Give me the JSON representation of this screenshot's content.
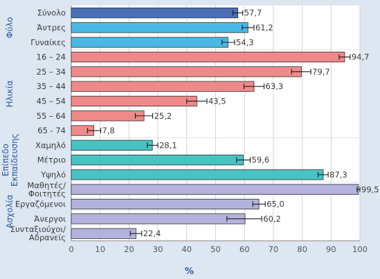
{
  "chart_data": {
    "type": "bar",
    "orientation": "horizontal",
    "xlabel": "%",
    "xlim": [
      0,
      100
    ],
    "xticks": [
      0,
      10,
      20,
      30,
      40,
      50,
      60,
      70,
      80,
      90,
      100
    ],
    "grid": true,
    "groups": [
      {
        "name": "Φύλο",
        "color": "#4ab8e6",
        "categories": [
          "Σύνολο",
          "Άντρες",
          "Γυναίκες"
        ]
      },
      {
        "name": "Ηλικία",
        "color": "#f08a8a",
        "categories": [
          "16 – 24",
          "25 – 34",
          "35 – 44",
          "45 – 54",
          "55 – 64",
          "65 - 74"
        ]
      },
      {
        "name": "Επίπεδο Εκπαίδευσης",
        "color": "#48c3c3",
        "categories": [
          "Χαμηλό",
          "Μέτριο",
          "Υψηλό"
        ]
      },
      {
        "name": "Ασχολία",
        "color": "#b4b3de",
        "categories": [
          "Μαθητές/ Φοιτητές",
          "Εργαζόμενοι",
          "Άνεργοι",
          "Συνταξιούχοι/ Αδρανείς"
        ]
      }
    ],
    "bars": [
      {
        "category": "Σύνολο",
        "value": 57.7,
        "label": "57,7",
        "err_low": 56.0,
        "err_high": 59.4,
        "color": "#4a6fb5"
      },
      {
        "category": "Άντρες",
        "value": 61.2,
        "label": "61,2",
        "err_low": 59.2,
        "err_high": 63.3,
        "color": "#4ab8e6"
      },
      {
        "category": "Γυναίκες",
        "value": 54.3,
        "label": "54,3",
        "err_low": 52.2,
        "err_high": 56.6,
        "color": "#4ab8e6"
      },
      {
        "category": "16 – 24",
        "value": 94.7,
        "label": "94,7",
        "err_low": 92.8,
        "err_high": 96.6,
        "color": "#f08a8a"
      },
      {
        "category": "25 – 34",
        "value": 79.7,
        "label": "79,7",
        "err_low": 76.3,
        "err_high": 83.0,
        "color": "#f08a8a"
      },
      {
        "category": "35 – 44",
        "value": 63.3,
        "label": "63,3",
        "err_low": 59.8,
        "err_high": 66.8,
        "color": "#f08a8a"
      },
      {
        "category": "45 – 54",
        "value": 43.5,
        "label": "43,5",
        "err_low": 40.0,
        "err_high": 47.0,
        "color": "#f08a8a"
      },
      {
        "category": "55 – 64",
        "value": 25.2,
        "label": "25,2",
        "err_low": 22.2,
        "err_high": 28.2,
        "color": "#f08a8a"
      },
      {
        "category": "65 - 74",
        "value": 7.8,
        "label": "7,8",
        "err_low": 5.6,
        "err_high": 10.2,
        "color": "#f08a8a"
      },
      {
        "category": "Χαμηλό",
        "value": 28.1,
        "label": "28,1",
        "err_low": 26.3,
        "err_high": 30.0,
        "color": "#48c3c3"
      },
      {
        "category": "Μέτριο",
        "value": 59.6,
        "label": "59,6",
        "err_low": 57.3,
        "err_high": 62.0,
        "color": "#48c3c3"
      },
      {
        "category": "Υψηλό",
        "value": 87.3,
        "label": "87,3",
        "err_low": 85.5,
        "err_high": 89.0,
        "color": "#48c3c3"
      },
      {
        "category": "Μαθητές/ Φοιτητές",
        "value": 99.5,
        "label": "99,5",
        "err_low": 99.0,
        "err_high": 100.0,
        "color": "#b4b3de"
      },
      {
        "category": "Εργαζόμενοι",
        "value": 65.0,
        "label": "65,0",
        "err_low": 62.9,
        "err_high": 67.2,
        "color": "#b4b3de"
      },
      {
        "category": "Άνεργοι",
        "value": 60.2,
        "label": "60,2",
        "err_low": 53.9,
        "err_high": 66.0,
        "color": "#b4b3de"
      },
      {
        "category": "Συνταξιούχοι/ Αδρανείς",
        "value": 22.4,
        "label": "22,4",
        "err_low": 20.4,
        "err_high": 24.4,
        "color": "#b4b3de"
      }
    ]
  }
}
